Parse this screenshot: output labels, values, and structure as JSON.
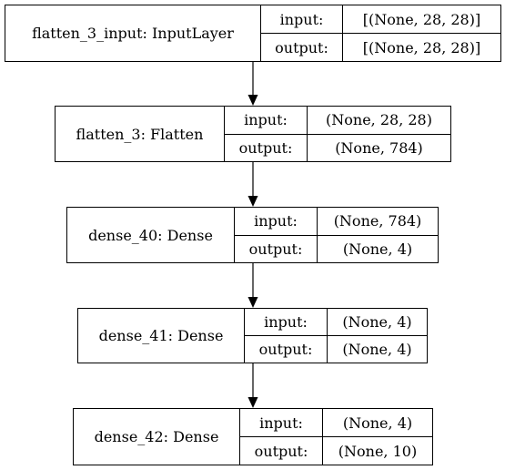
{
  "nodes": [
    {
      "name": "flatten_3_input: InputLayer",
      "input_label": "input:",
      "output_label": "output:",
      "input": "[(None, 28, 28)]",
      "output": "[(None, 28, 28)]"
    },
    {
      "name": "flatten_3: Flatten",
      "input_label": "input:",
      "output_label": "output:",
      "input": "(None, 28, 28)",
      "output": "(None, 784)"
    },
    {
      "name": "dense_40: Dense",
      "input_label": "input:",
      "output_label": "output:",
      "input": "(None, 784)",
      "output": "(None, 4)"
    },
    {
      "name": "dense_41: Dense",
      "input_label": "input:",
      "output_label": "output:",
      "input": "(None, 4)",
      "output": "(None, 4)"
    },
    {
      "name": "dense_42: Dense",
      "input_label": "input:",
      "output_label": "output:",
      "input": "(None, 4)",
      "output": "(None, 10)"
    }
  ],
  "colors": {
    "stroke": "#000000",
    "fill": "#ffffff"
  }
}
